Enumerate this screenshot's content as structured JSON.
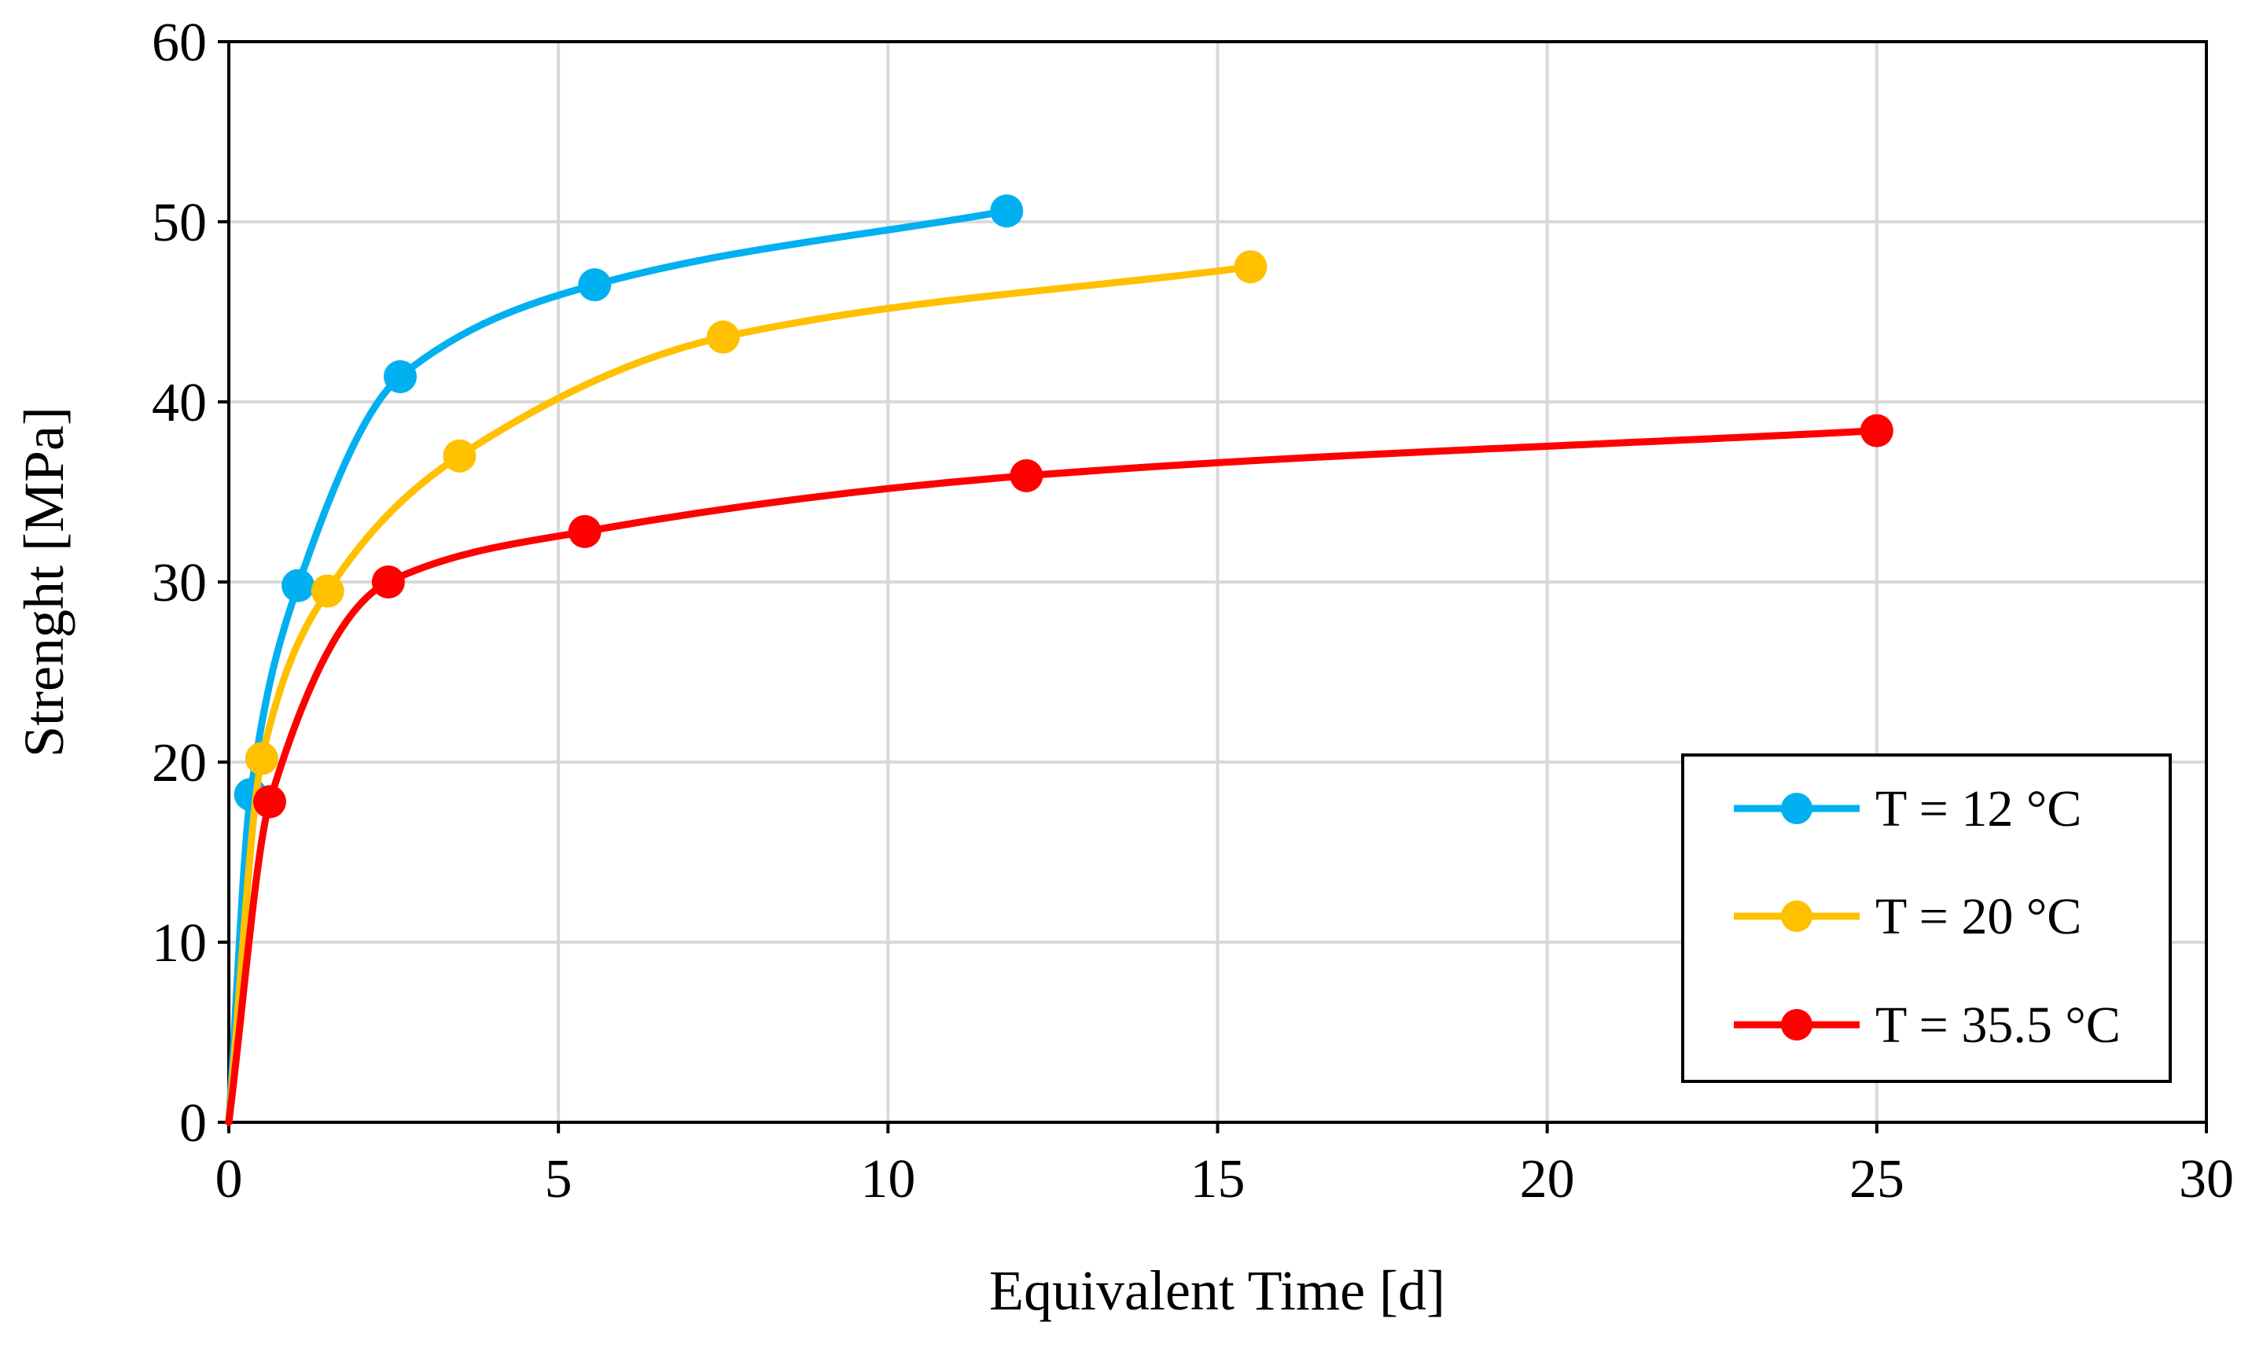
{
  "chart_data": {
    "type": "line",
    "title": "",
    "xlabel": "Equivalent Time [d]",
    "ylabel": "Strenght [MPa]",
    "xlim": [
      0,
      30
    ],
    "ylim": [
      0,
      60
    ],
    "x_ticks": [
      0,
      5,
      10,
      15,
      20,
      25,
      30
    ],
    "y_ticks": [
      0,
      10,
      20,
      30,
      40,
      50,
      60
    ],
    "x_tick_labels": [
      "0",
      "5",
      "10",
      "15",
      "20",
      "25",
      "30"
    ],
    "y_tick_labels": [
      "0",
      "10",
      "20",
      "30",
      "40",
      "50",
      "60"
    ],
    "grid": true,
    "legend_position": "bottom-right",
    "series": [
      {
        "name": "T = 12 °C",
        "color": "#00B0F0",
        "x": [
          0,
          0.33,
          1.05,
          2.6,
          5.55,
          11.8
        ],
        "y": [
          0,
          18.2,
          29.8,
          41.4,
          46.5,
          50.6
        ]
      },
      {
        "name": "T = 20 °C",
        "color": "#FFC000",
        "x": [
          0,
          0.5,
          1.5,
          3.5,
          7.5,
          15.5
        ],
        "y": [
          0,
          20.2,
          29.5,
          37.0,
          43.6,
          47.5
        ]
      },
      {
        "name": "T = 35.5 °C",
        "color": "#FF0000",
        "x": [
          0,
          0.62,
          2.42,
          5.4,
          12.1,
          25.0
        ],
        "y": [
          0,
          17.8,
          30.0,
          32.8,
          35.9,
          38.4
        ]
      }
    ]
  }
}
